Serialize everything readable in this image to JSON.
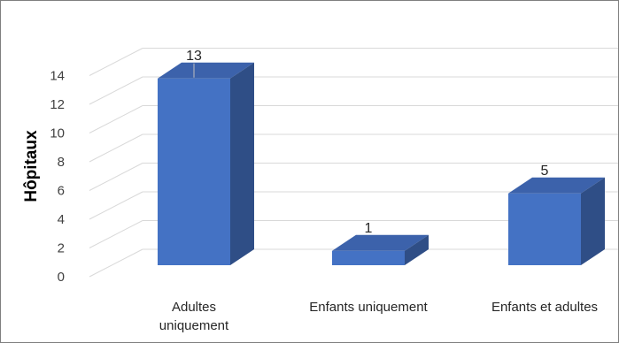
{
  "chart_data": {
    "type": "bar",
    "style": "3d-column",
    "categories": [
      "Adultes\nuniquement",
      "Enfants uniquement",
      "Enfants et adultes"
    ],
    "values": [
      13,
      1,
      5
    ],
    "data_labels": [
      "13",
      "1",
      "5"
    ],
    "title": "",
    "xlabel": "",
    "ylabel": "Hôpitaux",
    "ylim": [
      0,
      14
    ],
    "yticks": [
      "0",
      "2",
      "4",
      "6",
      "8",
      "10",
      "12",
      "14"
    ],
    "grid": true,
    "legend": "none",
    "colors": {
      "bar_front": "#4472c4",
      "bar_top": "#3c62ab",
      "bar_side": "#2f4e86",
      "grid": "#d9d9d9"
    }
  }
}
